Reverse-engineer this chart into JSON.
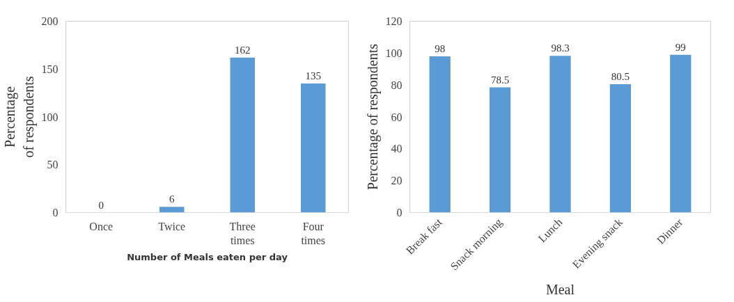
{
  "chart_data": [
    {
      "type": "bar",
      "categories": [
        "Once",
        "Twice",
        "Three times",
        "Four times"
      ],
      "values": [
        0,
        6,
        162,
        135
      ],
      "color": "#5b9bd5",
      "xlabel": "Number of Meals eaten per day",
      "ylabel": "Percentage\nof respondents",
      "ylim": [
        0,
        200
      ],
      "yticks": [
        0,
        50,
        100,
        150,
        200
      ],
      "data_labels": true,
      "grid": false
    },
    {
      "type": "bar",
      "categories": [
        "Break fast",
        "Snack morning",
        "Lunch",
        "Evening snack",
        "Dinner"
      ],
      "values": [
        98,
        78.5,
        98.3,
        80.5,
        99
      ],
      "color": "#5b9bd5",
      "xlabel": "Meal",
      "ylabel": "Percentage of respondents",
      "ylim": [
        0,
        120
      ],
      "yticks": [
        0,
        20,
        40,
        60,
        80,
        100,
        120
      ],
      "data_labels": true,
      "grid": false
    }
  ]
}
